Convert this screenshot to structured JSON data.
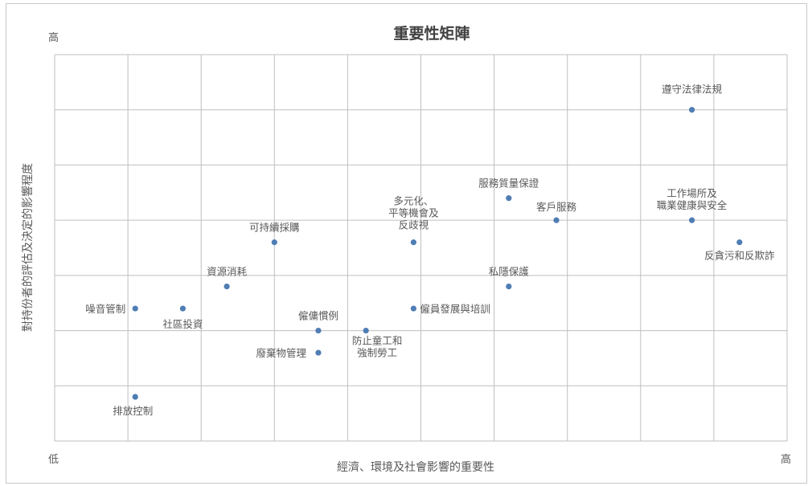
{
  "chart_data": {
    "type": "scatter",
    "title": "重要性矩陣",
    "xlabel": "經濟、環境及社會影響的重要性",
    "ylabel": "對持份者的評估及決定的影響程度",
    "x_low_label": "低",
    "x_high_label": "高",
    "y_high_label": "高",
    "xlim": [
      0,
      10
    ],
    "ylim": [
      0,
      7
    ],
    "grid": true,
    "legend": "none",
    "marker_color": "#4f7db4",
    "points": [
      {
        "name": "遵守法律法規",
        "x": 8.7,
        "y": 6.0
      },
      {
        "name": "服務質量保證",
        "x": 6.2,
        "y": 4.4
      },
      {
        "name": "客戶服務",
        "x": 6.85,
        "y": 4.0
      },
      {
        "name": "工作場所及職業健康與安全",
        "x": 8.7,
        "y": 4.0
      },
      {
        "name": "反貪污和反欺詐",
        "x": 9.35,
        "y": 3.6
      },
      {
        "name": "多元化、平等機會及反歧視",
        "x": 4.9,
        "y": 3.6
      },
      {
        "name": "可持續採購",
        "x": 3.0,
        "y": 3.6
      },
      {
        "name": "資源消耗",
        "x": 2.35,
        "y": 2.8
      },
      {
        "name": "私隱保護",
        "x": 6.2,
        "y": 2.8
      },
      {
        "name": "噪音管制",
        "x": 1.1,
        "y": 2.4
      },
      {
        "name": "社區投資",
        "x": 1.75,
        "y": 2.4
      },
      {
        "name": "僱員發展與培訓",
        "x": 4.9,
        "y": 2.4
      },
      {
        "name": "僱傭慣例",
        "x": 3.6,
        "y": 2.0
      },
      {
        "name": "防止童工和強制勞工",
        "x": 4.25,
        "y": 2.0
      },
      {
        "name": "廢棄物管理",
        "x": 3.6,
        "y": 1.6
      },
      {
        "name": "排放控制",
        "x": 1.1,
        "y": 0.8
      }
    ],
    "point_labels": [
      [
        "遵守法律法規"
      ],
      [
        "服務質量保證"
      ],
      [
        "客戶服務"
      ],
      [
        "工作場所及",
        "職業健康與安全"
      ],
      [
        "反貪污和反欺詐"
      ],
      [
        "多元化、",
        "平等機會及",
        "反歧視"
      ],
      [
        "可持續採購"
      ],
      [
        "資源消耗"
      ],
      [
        "私隱保護"
      ],
      [
        "噪音管制"
      ],
      [
        "社區投資"
      ],
      [
        "僱員發展與培訓"
      ],
      [
        "僱傭慣例"
      ],
      [
        "防止童工和",
        "強制勞工"
      ],
      [
        "廢棄物管理"
      ],
      [
        "排放控制"
      ]
    ]
  }
}
